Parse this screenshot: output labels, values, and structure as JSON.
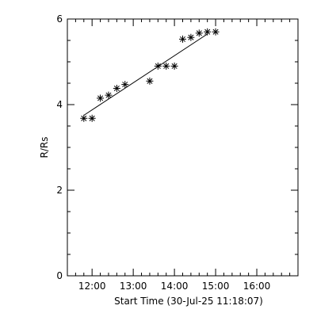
{
  "chart_data": {
    "type": "scatter",
    "title": "",
    "xlabel": "Start Time (30-Jul-25 11:18:07)",
    "ylabel": "R/Rs",
    "x_unit": "time of day (HH:MM)",
    "xlim": [
      "11:24",
      "17:00"
    ],
    "ylim": [
      0,
      6
    ],
    "x_ticks": [
      "12:00",
      "13:00",
      "14:00",
      "15:00",
      "16:00"
    ],
    "y_ticks": [
      "0",
      "2",
      "4",
      "6"
    ],
    "marker": "asterisk",
    "grid": false,
    "series": [
      {
        "name": "",
        "points": [
          {
            "x": "11:48",
            "y": 3.68
          },
          {
            "x": "12:00",
            "y": 3.68
          },
          {
            "x": "12:12",
            "y": 4.15
          },
          {
            "x": "12:24",
            "y": 4.22
          },
          {
            "x": "12:36",
            "y": 4.38
          },
          {
            "x": "12:48",
            "y": 4.47
          },
          {
            "x": "13:24",
            "y": 4.55
          },
          {
            "x": "13:36",
            "y": 4.9
          },
          {
            "x": "13:48",
            "y": 4.9
          },
          {
            "x": "14:00",
            "y": 4.9
          },
          {
            "x": "14:12",
            "y": 5.53
          },
          {
            "x": "14:24",
            "y": 5.57
          },
          {
            "x": "14:36",
            "y": 5.67
          },
          {
            "x": "14:48",
            "y": 5.7
          },
          {
            "x": "15:00",
            "y": 5.7
          }
        ]
      }
    ],
    "fit_line": {
      "x": [
        "11:48",
        "14:48"
      ],
      "y": [
        3.75,
        5.65
      ]
    }
  }
}
